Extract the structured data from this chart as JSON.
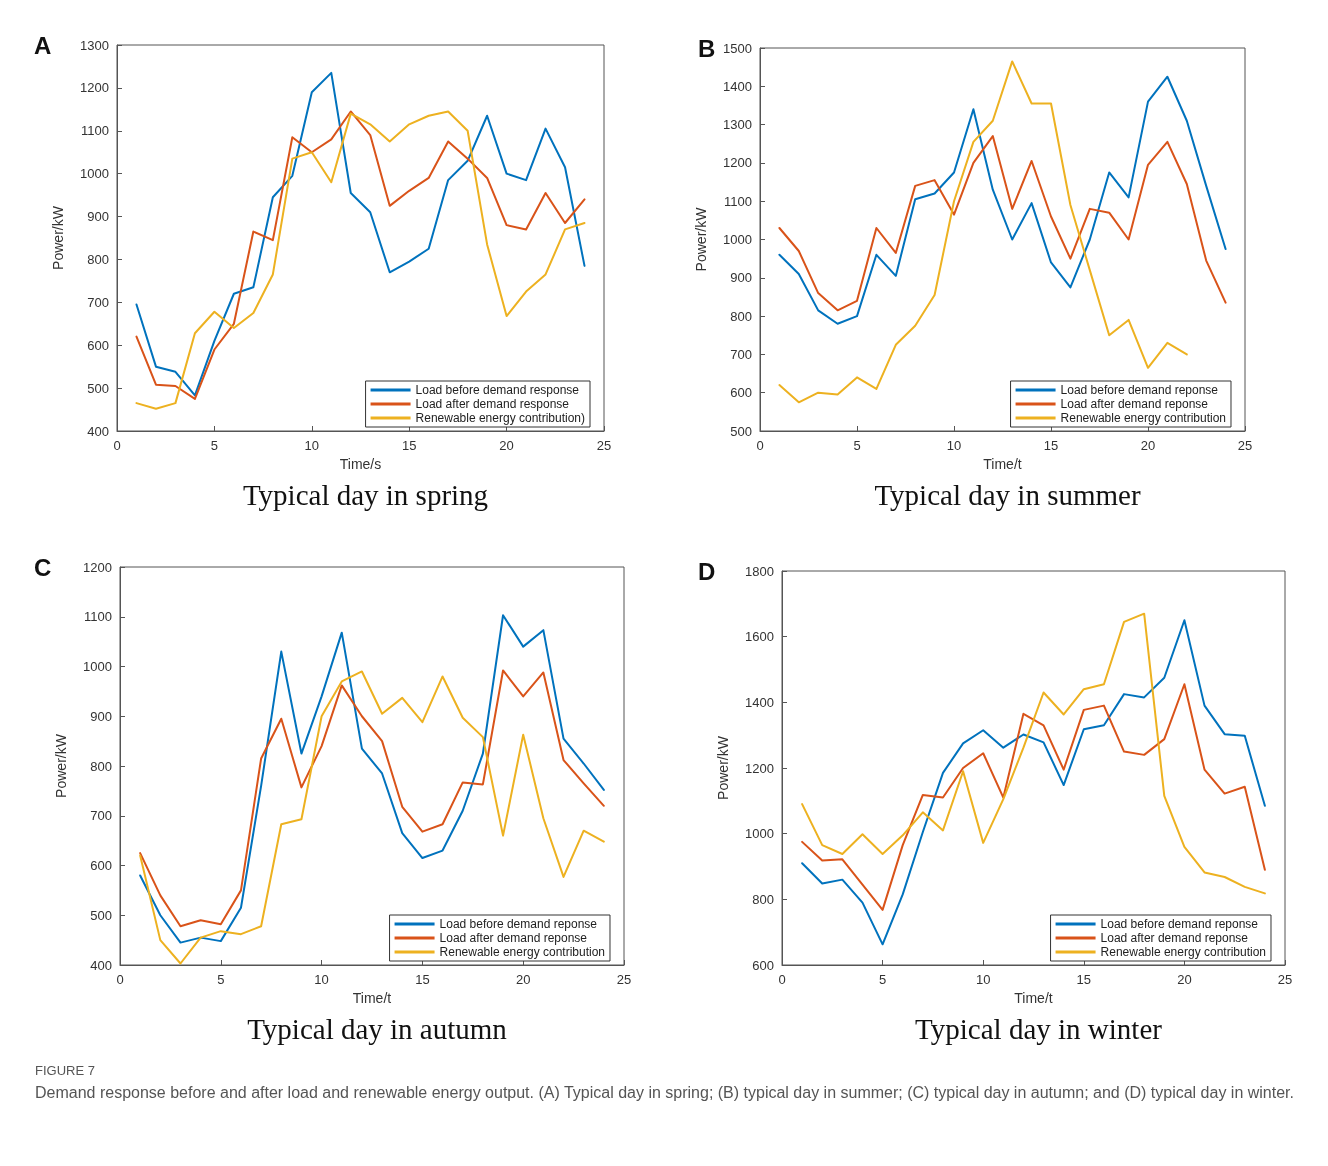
{
  "chart_data": [
    {
      "type": "line",
      "title": "Typical day in spring",
      "xlabel": "Time/s",
      "ylabel": "Power/kW",
      "annotations": [
        "A"
      ],
      "x": [
        1,
        2,
        3,
        4,
        5,
        6,
        7,
        8,
        9,
        10,
        11,
        12,
        13,
        14,
        15,
        16,
        17,
        18,
        19,
        20,
        21,
        22,
        23,
        24
      ],
      "xlim": [
        0,
        25
      ],
      "xticks": [
        0,
        5,
        10,
        15,
        20,
        25
      ],
      "ylim": [
        400,
        1300
      ],
      "yticks": [
        400,
        500,
        600,
        700,
        800,
        900,
        1000,
        1100,
        1200,
        1300
      ],
      "legend": "bottom right",
      "grid": false,
      "marker": "none",
      "line_style": "solid",
      "series": [
        {
          "name": "Load before demand response",
          "color": "#0072bd",
          "values": [
            695,
            550,
            538,
            483,
            610,
            720,
            735,
            945,
            995,
            1190,
            1235,
            955,
            910,
            770,
            795,
            825,
            985,
            1030,
            1135,
            1000,
            985,
            1105,
            1015,
            785
          ]
        },
        {
          "name": "Load after demand response",
          "color": "#d95319",
          "values": [
            620,
            508,
            505,
            475,
            590,
            650,
            865,
            845,
            1085,
            1050,
            1080,
            1145,
            1090,
            925,
            960,
            990,
            1075,
            1035,
            990,
            880,
            870,
            955,
            885,
            940
          ]
        },
        {
          "name": "Renewable energy contribution)",
          "color": "#edb120",
          "values": [
            465,
            452,
            465,
            628,
            678,
            640,
            675,
            765,
            1035,
            1050,
            980,
            1140,
            1115,
            1075,
            1115,
            1135,
            1145,
            1100,
            835,
            668,
            725,
            765,
            870,
            885
          ]
        }
      ]
    },
    {
      "type": "line",
      "title": "Typical day in summer",
      "xlabel": "Time/t",
      "ylabel": "Power/kW",
      "annotations": [
        "B"
      ],
      "x": [
        1,
        2,
        3,
        4,
        5,
        6,
        7,
        8,
        9,
        10,
        11,
        12,
        13,
        14,
        15,
        16,
        17,
        18,
        19,
        20,
        21,
        22,
        23,
        24
      ],
      "xlim": [
        0,
        25
      ],
      "xticks": [
        0,
        5,
        10,
        15,
        20,
        25
      ],
      "ylim": [
        500,
        1500
      ],
      "yticks": [
        500,
        600,
        700,
        800,
        900,
        1000,
        1100,
        1200,
        1300,
        1400,
        1500
      ],
      "legend": "bottom right",
      "grid": false,
      "marker": "none",
      "line_style": "solid",
      "series": [
        {
          "name": "Load before demand reponse",
          "color": "#0072bd",
          "values": [
            960,
            910,
            815,
            780,
            800,
            960,
            905,
            1105,
            1120,
            1175,
            1340,
            1130,
            1000,
            1095,
            940,
            875,
            1000,
            1175,
            1110,
            1360,
            1425,
            1310,
            1140,
            975
          ]
        },
        {
          "name": "Load after demand reponse",
          "color": "#d95319",
          "values": [
            1030,
            970,
            860,
            815,
            840,
            1030,
            965,
            1140,
            1155,
            1065,
            1200,
            1270,
            1080,
            1205,
            1060,
            950,
            1080,
            1070,
            1000,
            1195,
            1255,
            1145,
            945,
            835
          ]
        },
        {
          "name": "Renewable energy contribution",
          "color": "#edb120",
          "values": [
            620,
            575,
            600,
            595,
            640,
            610,
            725,
            775,
            855,
            1100,
            1255,
            1310,
            1465,
            1355,
            1355,
            1090,
            920,
            750,
            790,
            665,
            730,
            700,
            null,
            null
          ]
        }
      ]
    },
    {
      "type": "line",
      "title": "Typical day in autumn",
      "xlabel": "Time/t",
      "ylabel": "Power/kW",
      "annotations": [
        "C"
      ],
      "x": [
        1,
        2,
        3,
        4,
        5,
        6,
        7,
        8,
        9,
        10,
        11,
        12,
        13,
        14,
        15,
        16,
        17,
        18,
        19,
        20,
        21,
        22,
        23,
        24
      ],
      "xlim": [
        0,
        25
      ],
      "xticks": [
        0,
        5,
        10,
        15,
        20,
        25
      ],
      "ylim": [
        400,
        1200
      ],
      "yticks": [
        400,
        500,
        600,
        700,
        800,
        900,
        1000,
        1100,
        1200
      ],
      "legend": "bottom right",
      "grid": false,
      "marker": "none",
      "line_style": "solid",
      "series": [
        {
          "name": "Load before demand reponse",
          "color": "#0072bd",
          "values": [
            580,
            500,
            445,
            455,
            448,
            515,
            760,
            1030,
            825,
            940,
            1068,
            835,
            785,
            665,
            615,
            630,
            710,
            825,
            1103,
            1040,
            1073,
            855,
            805,
            752
          ]
        },
        {
          "name": "Load after demand reponse",
          "color": "#d95319",
          "values": [
            625,
            540,
            478,
            490,
            482,
            550,
            815,
            895,
            757,
            840,
            962,
            900,
            850,
            718,
            668,
            683,
            767,
            763,
            992,
            940,
            988,
            812,
            765,
            720
          ]
        },
        {
          "name": "Renewable energy contribution",
          "color": "#edb120",
          "values": [
            620,
            450,
            403,
            455,
            468,
            462,
            478,
            683,
            693,
            900,
            970,
            990,
            905,
            937,
            888,
            980,
            897,
            858,
            660,
            863,
            695,
            577,
            670,
            648
          ]
        }
      ]
    },
    {
      "type": "line",
      "title": "Typical day in winter",
      "xlabel": "Time/t",
      "ylabel": "Power/kW",
      "annotations": [
        "D",
        "FIGURE 7",
        "Demand response before and after load and renewable energy output. (A) Typical day in spring; (B) typical day in summer; (C) typical day in autumn; and (D) typical day in winter."
      ],
      "x": [
        1,
        2,
        3,
        4,
        5,
        6,
        7,
        8,
        9,
        10,
        11,
        12,
        13,
        14,
        15,
        16,
        17,
        18,
        19,
        20,
        21,
        22,
        23,
        24
      ],
      "xlim": [
        0,
        25
      ],
      "xticks": [
        0,
        5,
        10,
        15,
        20,
        25
      ],
      "ylim": [
        600,
        1800
      ],
      "yticks": [
        600,
        800,
        1000,
        1200,
        1400,
        1600,
        1800
      ],
      "legend": "bottom right",
      "grid": false,
      "marker": "none",
      "line_style": "solid",
      "series": [
        {
          "name": "Load before demand reponse",
          "color": "#0072bd",
          "values": [
            910,
            848,
            860,
            790,
            663,
            815,
            1005,
            1185,
            1275,
            1315,
            1262,
            1302,
            1278,
            1148,
            1318,
            1330,
            1425,
            1415,
            1475,
            1650,
            1390,
            1303,
            1298,
            1085
          ]
        },
        {
          "name": "Load after demand reponse",
          "color": "#d95319",
          "values": [
            975,
            918,
            922,
            845,
            768,
            965,
            1118,
            1110,
            1200,
            1245,
            1110,
            1365,
            1330,
            1195,
            1377,
            1390,
            1250,
            1240,
            1288,
            1455,
            1195,
            1122,
            1143,
            890
          ]
        },
        {
          "name": "Renewable energy contribution",
          "color": "#edb120",
          "values": [
            1090,
            965,
            938,
            998,
            938,
            995,
            1065,
            1010,
            1190,
            972,
            1105,
            1262,
            1430,
            1363,
            1440,
            1455,
            1645,
            1670,
            1115,
            960,
            882,
            868,
            838,
            818
          ]
        }
      ]
    }
  ]
}
